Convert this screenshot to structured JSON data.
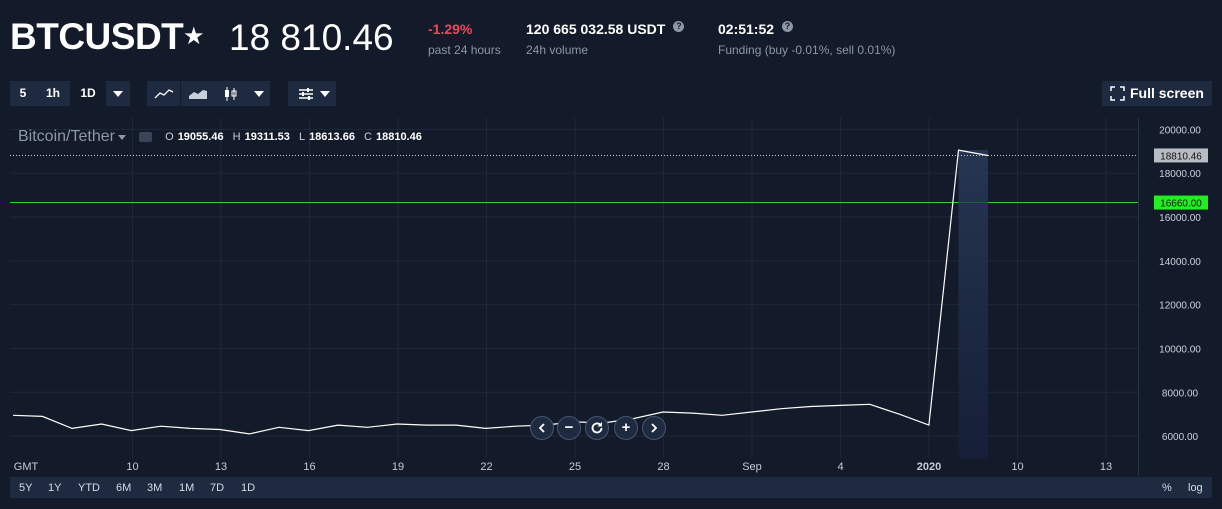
{
  "header": {
    "symbol": "BTCUSDT",
    "price": "18 810.46",
    "change": "-1.29%",
    "change_label": "past 24 hours",
    "volume": "120 665 032.58 USDT",
    "volume_label": "24h volume",
    "funding_time": "02:51:52",
    "funding_label": "Funding (buy -0.01%, sell 0.01%)",
    "help_glyph": "?"
  },
  "toolbar": {
    "interval_5": "5",
    "interval_1h": "1h",
    "interval_1d": "1D",
    "fullscreen_label": "Full screen"
  },
  "legend": {
    "name": "Bitcoin/Tether",
    "o_key": "O",
    "o": "19055.46",
    "h_key": "H",
    "h": "19311.53",
    "l_key": "L",
    "l": "18613.66",
    "c_key": "C",
    "c": "18810.46"
  },
  "navigation": {
    "zoom_out": "−",
    "zoom_in": "+"
  },
  "range_bar": {
    "ranges": [
      "5Y",
      "1Y",
      "YTD",
      "6M",
      "3M",
      "1M",
      "7D",
      "1D"
    ],
    "percent": "%",
    "log": "log"
  },
  "colors": {
    "background": "#131a2a",
    "panel": "#1e2a40",
    "line": "#ffffff",
    "negative": "#f0475a",
    "level": "#22dd22"
  },
  "chart_data": {
    "type": "line",
    "title": "Bitcoin/Tether",
    "y_ticks": [
      "20000.00",
      "18000.00",
      "16000.00",
      "14000.00",
      "12000.00",
      "10000.00",
      "8000.00",
      "6000.00"
    ],
    "x_ticks": [
      "GMT",
      "10",
      "13",
      "16",
      "19",
      "22",
      "25",
      "28",
      "Sep",
      "4",
      "2020",
      "10",
      "13"
    ],
    "ylim": [
      5000,
      20200
    ],
    "last_price_label": "18810.46",
    "level_label": "16660.00",
    "level_value": 16660,
    "last_value": 18810.46,
    "values": [
      6950,
      6900,
      6350,
      6550,
      6250,
      6450,
      6350,
      6300,
      6100,
      6400,
      6250,
      6500,
      6400,
      6550,
      6500,
      6500,
      6350,
      6450,
      6500,
      6650,
      6600,
      6800,
      7100,
      7050,
      6950,
      7100,
      7250,
      7350,
      7400,
      7450,
      7000,
      6500,
      19055,
      18810
    ]
  }
}
